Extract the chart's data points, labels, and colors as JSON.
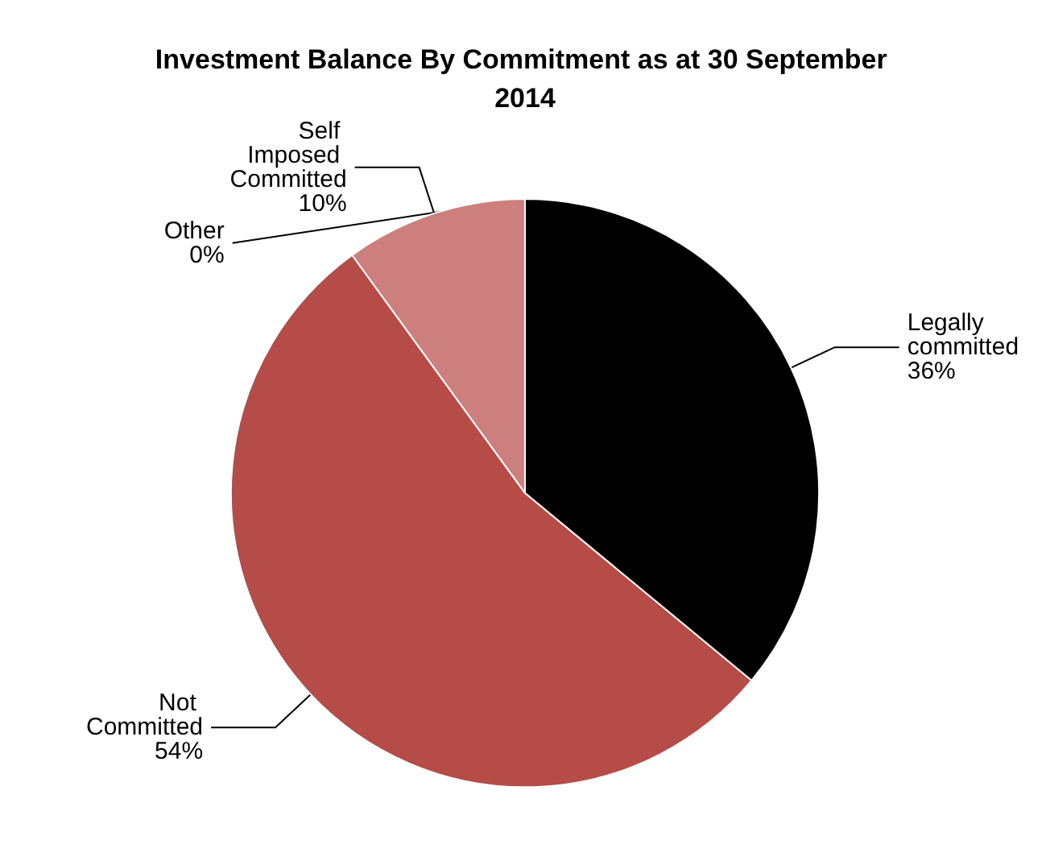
{
  "chart_data": {
    "type": "pie",
    "title": "Investment Balance By Commitment as at 30 September 2014",
    "categories": [
      "Legally committed",
      "Not Committed",
      "Self Imposed Committed",
      "Other"
    ],
    "values": [
      36,
      54,
      10,
      0
    ],
    "value_labels": [
      "36%",
      "54%",
      "10%",
      "0%"
    ],
    "colors": [
      "#000000",
      "#b54c48",
      "#cc7f7c",
      "#e6b9b8"
    ],
    "legend": false
  }
}
